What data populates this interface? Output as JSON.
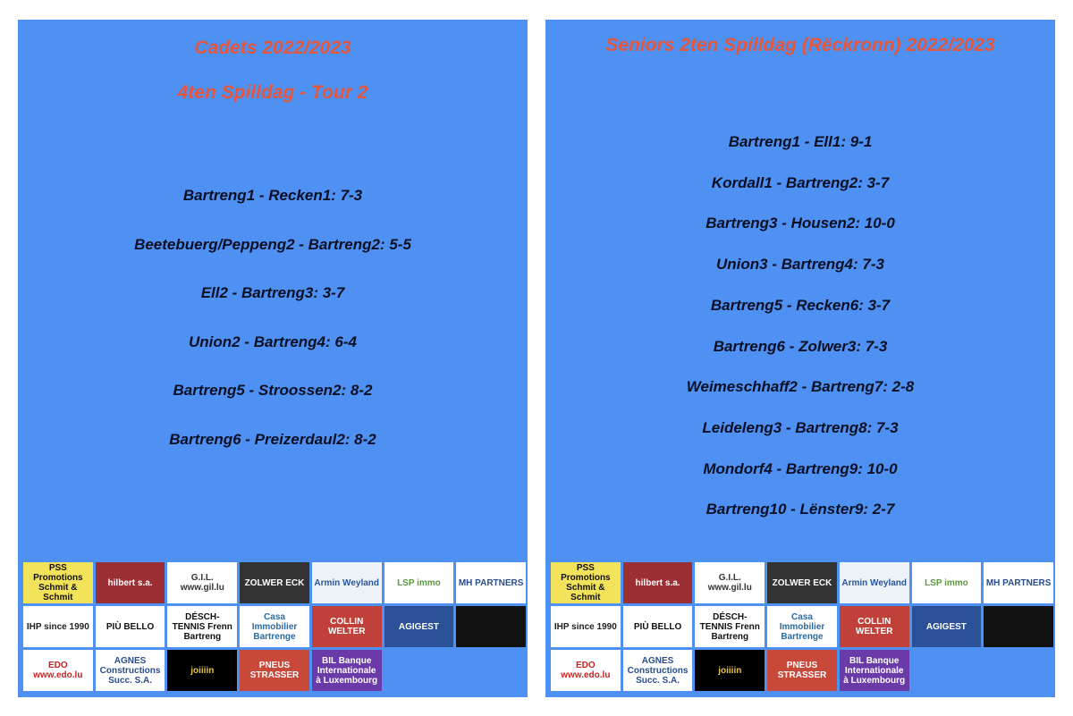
{
  "left": {
    "title": "Cadets 2022/2023",
    "subtitle": "4ten Spilldag - Tour 2",
    "matches": [
      "Bartreng1 - Recken1: 7-3",
      "Beetebuerg/Peppeng2 - Bartreng2: 5-5",
      "Ell2 - Bartreng3: 3-7",
      "Union2 - Bartreng4: 6-4",
      "Bartreng5 - Stroossen2: 8-2",
      "Bartreng6 - Preizerdaul2: 8-2"
    ]
  },
  "right": {
    "title": "Seniors 2ten Spilldag (Rëckronn) 2022/2023",
    "matches": [
      "Bartreng1 - Ell1: 9-1",
      "Kordall1 - Bartreng2: 3-7",
      "Bartreng3 - Housen2: 10-0",
      "Union3 - Bartreng4: 7-3",
      "Bartreng5 - Recken6: 3-7",
      "Bartreng6 - Zolwer3: 7-3",
      "Weimeschhaff2 - Bartreng7: 2-8",
      "Leideleng3 - Bartreng8: 7-3",
      "Mondorf4 - Bartreng9: 10-0",
      "Bartreng10 - Lënster9: 2-7"
    ]
  },
  "sponsors": [
    {
      "text": "PSS Promotions Schmit & Schmit",
      "bg": "#f3e35a",
      "fg": "#111"
    },
    {
      "text": "hilbert s.a.",
      "bg": "#9b2f33",
      "fg": "#fff"
    },
    {
      "text": "G.I.L. www.gil.lu",
      "bg": "#ffffff",
      "fg": "#333"
    },
    {
      "text": "ZOLWER ECK",
      "bg": "#333333",
      "fg": "#fff"
    },
    {
      "text": "Armin Weyland",
      "bg": "#eef3f8",
      "fg": "#2a56a0"
    },
    {
      "text": "LSP immo",
      "bg": "#ffffff",
      "fg": "#5a9a3a"
    },
    {
      "text": "MH PARTNERS",
      "bg": "#ffffff",
      "fg": "#2a4d8a"
    },
    {
      "text": "IHP since 1990",
      "bg": "#ffffff",
      "fg": "#222"
    },
    {
      "text": "PIÙ BELLO",
      "bg": "#ffffff",
      "fg": "#111"
    },
    {
      "text": "DÉSCH-TENNIS Frenn Bartreng",
      "bg": "#ffffff",
      "fg": "#111"
    },
    {
      "text": "Casa Immobilier Bartrenge",
      "bg": "#ffffff",
      "fg": "#2a6aa0"
    },
    {
      "text": "COLLIN WELTER",
      "bg": "#c0403a",
      "fg": "#fff"
    },
    {
      "text": "",
      "bg": "#111111",
      "fg": "#ccc"
    },
    {
      "text": "AGIGEST",
      "bg": "#2a5098",
      "fg": "#fff"
    },
    {
      "text": "EDO www.edo.lu",
      "bg": "#ffffff",
      "fg": "#c22"
    },
    {
      "text": "AGNES Constructions Succ. S.A.",
      "bg": "#ffffff",
      "fg": "#2a4d8a"
    },
    {
      "text": "joiiiin",
      "bg": "#000000",
      "fg": "#e9c54a"
    },
    {
      "text": "PNEUS STRASSER",
      "bg": "#c8483a",
      "fg": "#fff"
    },
    {
      "text": "BIL Banque Internationale à Luxembourg",
      "bg": "#6a3aa8",
      "fg": "#fff"
    }
  ]
}
